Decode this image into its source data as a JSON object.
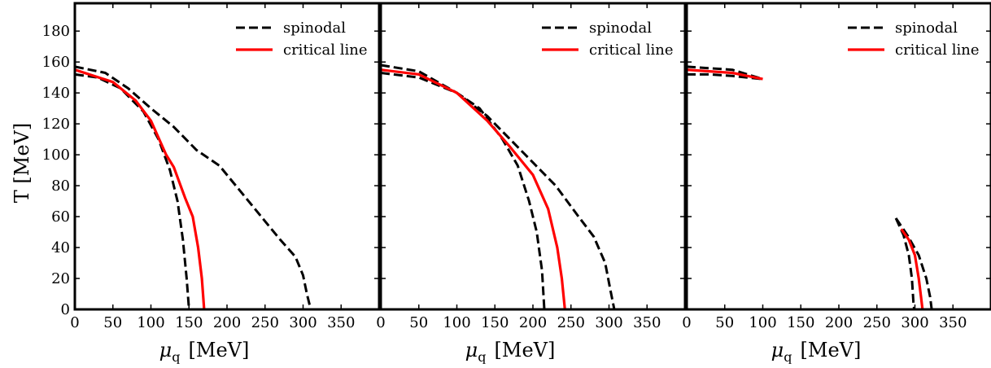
{
  "figure": {
    "ylabel": "T  [MeV]",
    "xlabel_symbol": "μ",
    "xlabel_sub": "q",
    "xlabel_unit": "[MeV]",
    "colors": {
      "spinodal": "#000000",
      "critical": "#ff0000"
    }
  },
  "chart_data": [
    {
      "type": "line",
      "title": "",
      "xlabel": "μq [MeV]",
      "ylabel": "T [MeV]",
      "xlim": [
        0,
        400
      ],
      "ylim": [
        0,
        198
      ],
      "xticks": [
        0,
        50,
        100,
        150,
        200,
        250,
        300,
        350
      ],
      "yticks": [
        0,
        20,
        40,
        60,
        80,
        100,
        120,
        140,
        160,
        180
      ],
      "legend": {
        "position": "top-right",
        "entries": [
          "spinodal",
          "critical line"
        ]
      },
      "series": [
        {
          "name": "spinodal",
          "style": "dashed",
          "color": "#000000",
          "points": [
            [
              0,
              152
            ],
            [
              30,
              150
            ],
            [
              60,
              143
            ],
            [
              90,
              128
            ],
            [
              110,
              110
            ],
            [
              125,
              90
            ],
            [
              135,
              70
            ],
            [
              142,
              45
            ],
            [
              147,
              20
            ],
            [
              150,
              0
            ]
          ]
        },
        {
          "name": "spinodal",
          "style": "dashed",
          "color": "#000000",
          "points": [
            [
              0,
              157
            ],
            [
              40,
              153
            ],
            [
              70,
              143
            ],
            [
              100,
              130
            ],
            [
              130,
              118
            ],
            [
              160,
              103
            ],
            [
              190,
              93
            ],
            [
              220,
              75
            ],
            [
              250,
              57
            ],
            [
              270,
              45
            ],
            [
              290,
              34
            ],
            [
              300,
              22
            ],
            [
              305,
              10
            ],
            [
              310,
              0
            ]
          ]
        },
        {
          "name": "critical line",
          "style": "solid",
          "color": "#ff0000",
          "points": [
            [
              0,
              155
            ],
            [
              50,
              147
            ],
            [
              80,
              135
            ],
            [
              100,
              122
            ],
            [
              120,
              100
            ],
            [
              130,
              92
            ],
            [
              145,
              72
            ],
            [
              155,
              60
            ],
            [
              162,
              40
            ],
            [
              167,
              20
            ],
            [
              170,
              0
            ]
          ]
        }
      ]
    },
    {
      "type": "line",
      "title": "",
      "xlabel": "μq [MeV]",
      "ylabel": "",
      "xlim": [
        0,
        400
      ],
      "ylim": [
        0,
        198
      ],
      "xticks": [
        0,
        50,
        100,
        150,
        200,
        250,
        300,
        350
      ],
      "yticks": [
        0,
        20,
        40,
        60,
        80,
        100,
        120,
        140,
        160,
        180
      ],
      "legend": {
        "position": "top-right",
        "entries": [
          "spinodal",
          "critical line"
        ]
      },
      "series": [
        {
          "name": "spinodal",
          "style": "dashed",
          "color": "#000000",
          "points": [
            [
              0,
              153
            ],
            [
              50,
              150
            ],
            [
              100,
              140
            ],
            [
              130,
              130
            ],
            [
              160,
              110
            ],
            [
              180,
              93
            ],
            [
              195,
              70
            ],
            [
              205,
              50
            ],
            [
              212,
              25
            ],
            [
              215,
              0
            ]
          ]
        },
        {
          "name": "spinodal",
          "style": "dashed",
          "color": "#000000",
          "points": [
            [
              0,
              158
            ],
            [
              50,
              154
            ],
            [
              100,
              140
            ],
            [
              140,
              125
            ],
            [
              170,
              110
            ],
            [
              200,
              95
            ],
            [
              230,
              80
            ],
            [
              260,
              60
            ],
            [
              280,
              47
            ],
            [
              295,
              30
            ],
            [
              302,
              12
            ],
            [
              307,
              0
            ]
          ]
        },
        {
          "name": "critical line",
          "style": "solid",
          "color": "#ff0000",
          "points": [
            [
              0,
              155
            ],
            [
              50,
              152
            ],
            [
              100,
              140
            ],
            [
              140,
              122
            ],
            [
              170,
              105
            ],
            [
              200,
              87
            ],
            [
              220,
              65
            ],
            [
              232,
              40
            ],
            [
              238,
              20
            ],
            [
              242,
              0
            ]
          ]
        }
      ]
    },
    {
      "type": "line",
      "title": "",
      "xlabel": "μq [MeV]",
      "ylabel": "",
      "xlim": [
        0,
        400
      ],
      "ylim": [
        0,
        198
      ],
      "xticks": [
        0,
        50,
        100,
        150,
        200,
        250,
        300,
        350
      ],
      "yticks": [
        0,
        20,
        40,
        60,
        80,
        100,
        120,
        140,
        160,
        180
      ],
      "legend": {
        "position": "top-right",
        "entries": [
          "spinodal",
          "critical line"
        ]
      },
      "series": [
        {
          "name": "spinodal",
          "style": "dashed",
          "color": "#000000",
          "points": [
            [
              0,
              152
            ],
            [
              30,
              152
            ],
            [
              60,
              151
            ],
            [
              80,
              150
            ],
            [
              100,
              149
            ]
          ]
        },
        {
          "name": "spinodal",
          "style": "dashed",
          "color": "#000000",
          "points": [
            [
              0,
              157
            ],
            [
              30,
              156
            ],
            [
              60,
              155
            ],
            [
              80,
              152
            ],
            [
              100,
              149
            ]
          ]
        },
        {
          "name": "critical line",
          "style": "solid",
          "color": "#ff0000",
          "points": [
            [
              0,
              155
            ],
            [
              30,
              154
            ],
            [
              60,
              153
            ],
            [
              80,
              151
            ],
            [
              100,
              149
            ]
          ]
        },
        {
          "name": "spinodal",
          "style": "dashed",
          "color": "#000000",
          "points": [
            [
              275,
              59
            ],
            [
              285,
              48
            ],
            [
              292,
              35
            ],
            [
              296,
              20
            ],
            [
              298,
              5
            ],
            [
              299,
              0
            ]
          ]
        },
        {
          "name": "spinodal",
          "style": "dashed",
          "color": "#000000",
          "points": [
            [
              275,
              59
            ],
            [
              290,
              48
            ],
            [
              305,
              35
            ],
            [
              315,
              20
            ],
            [
              320,
              8
            ],
            [
              322,
              0
            ]
          ]
        },
        {
          "name": "critical line",
          "style": "solid",
          "color": "#ff0000",
          "points": [
            [
              282,
              52
            ],
            [
              292,
              45
            ],
            [
              300,
              35
            ],
            [
              305,
              20
            ],
            [
              308,
              8
            ],
            [
              310,
              0
            ]
          ]
        }
      ]
    }
  ]
}
